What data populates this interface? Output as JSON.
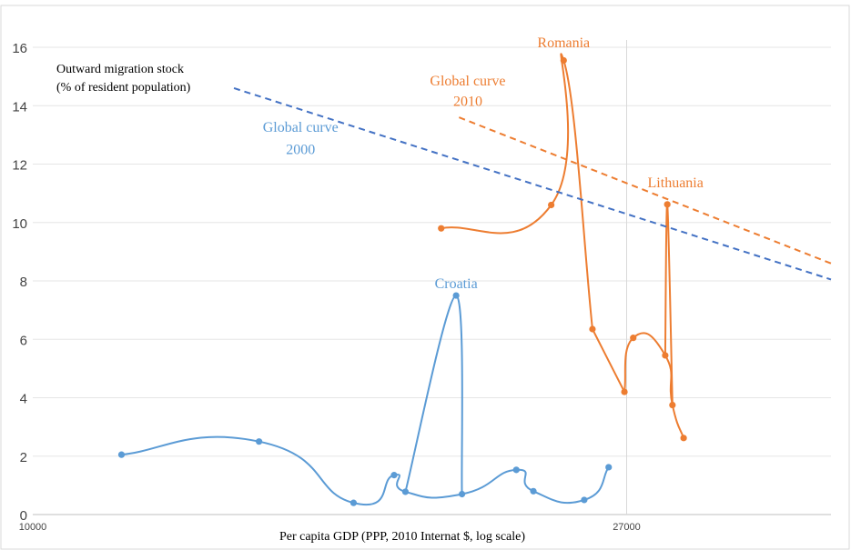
{
  "chart_data": {
    "type": "line",
    "ylabel": "Outward migration stock (% of resident population)",
    "ylabel_lines": [
      "Outward migration stock",
      "(% of resident population)"
    ],
    "xlabel": "Per capita GDP (PPP, 2010 Internat $, log scale)",
    "x_scale": "log",
    "xlim": [
      10000,
      38000
    ],
    "ylim": [
      0,
      16
    ],
    "x_tick_labels": [
      "10000",
      "27000"
    ],
    "y_ticks": [
      0,
      2,
      4,
      6,
      8,
      10,
      12,
      14,
      16
    ],
    "grid": "horizontal",
    "series": [
      {
        "name": "Croatia",
        "color": "#5b9bd5",
        "style": "solid-smooth",
        "x": [
          11600,
          14600,
          17100,
          18300,
          18650,
          20500,
          22450,
          23100,
          25150,
          26200
        ],
        "y": [
          2.05,
          2.5,
          0.4,
          1.35,
          0.78,
          0.7,
          1.53,
          0.8,
          0.5,
          1.62
        ]
      },
      {
        "name": "Romania",
        "color": "#ed7d31",
        "style": "solid-smooth",
        "x": [
          19800,
          23800,
          24300,
          25500
        ],
        "y": [
          9.8,
          10.6,
          15.55,
          6.35
        ]
      },
      {
        "name": "Lithuania",
        "color": "#ed7d31",
        "style": "solid-smooth",
        "x": [
          26900,
          27300,
          28800,
          29150,
          29700
        ],
        "y": [
          4.2,
          6.05,
          5.45,
          3.75,
          2.62
        ]
      },
      {
        "name": "Global curve 2000",
        "color": "#4472c4",
        "style": "dashed",
        "x": [
          14000,
          38000
        ],
        "y": [
          14.6,
          8.05
        ]
      },
      {
        "name": "Global curve 2010",
        "color": "#ed7d31",
        "style": "dashed",
        "x": [
          20400,
          38000
        ],
        "y": [
          13.6,
          8.6
        ]
      }
    ],
    "connectors": [
      {
        "color": "#5b9bd5",
        "x": [
          18650,
          20300,
          20500
        ],
        "y": [
          0.78,
          7.5,
          0.7
        ]
      },
      {
        "color": "#ed7d31",
        "x": [
          25500,
          26900
        ],
        "y": [
          6.35,
          4.2
        ]
      },
      {
        "color": "#ed7d31",
        "x": [
          28800,
          28900,
          29150
        ],
        "y": [
          5.45,
          10.62,
          3.75
        ]
      }
    ],
    "annotations": [
      {
        "text": "Croatia",
        "color": "#5b9bd5",
        "x": 20300,
        "y": 7.75
      },
      {
        "text": "Romania",
        "color": "#ed7d31",
        "x": 24300,
        "y": 16.0
      },
      {
        "text": "Lithuania",
        "color": "#ed7d31",
        "x": 29300,
        "y": 11.2
      },
      {
        "text": "Global curve",
        "color": "#5b9bd5",
        "x": 15650,
        "y": 13.1
      },
      {
        "text": "2000",
        "color": "#5b9bd5",
        "x": 15650,
        "y": 12.35
      },
      {
        "text": "Global  curve",
        "color": "#ed7d31",
        "x": 20700,
        "y": 14.7
      },
      {
        "text": "2010",
        "color": "#ed7d31",
        "x": 20700,
        "y": 14.0
      }
    ],
    "reference_line": {
      "x": 27000,
      "color": "#d9d9d9"
    }
  }
}
